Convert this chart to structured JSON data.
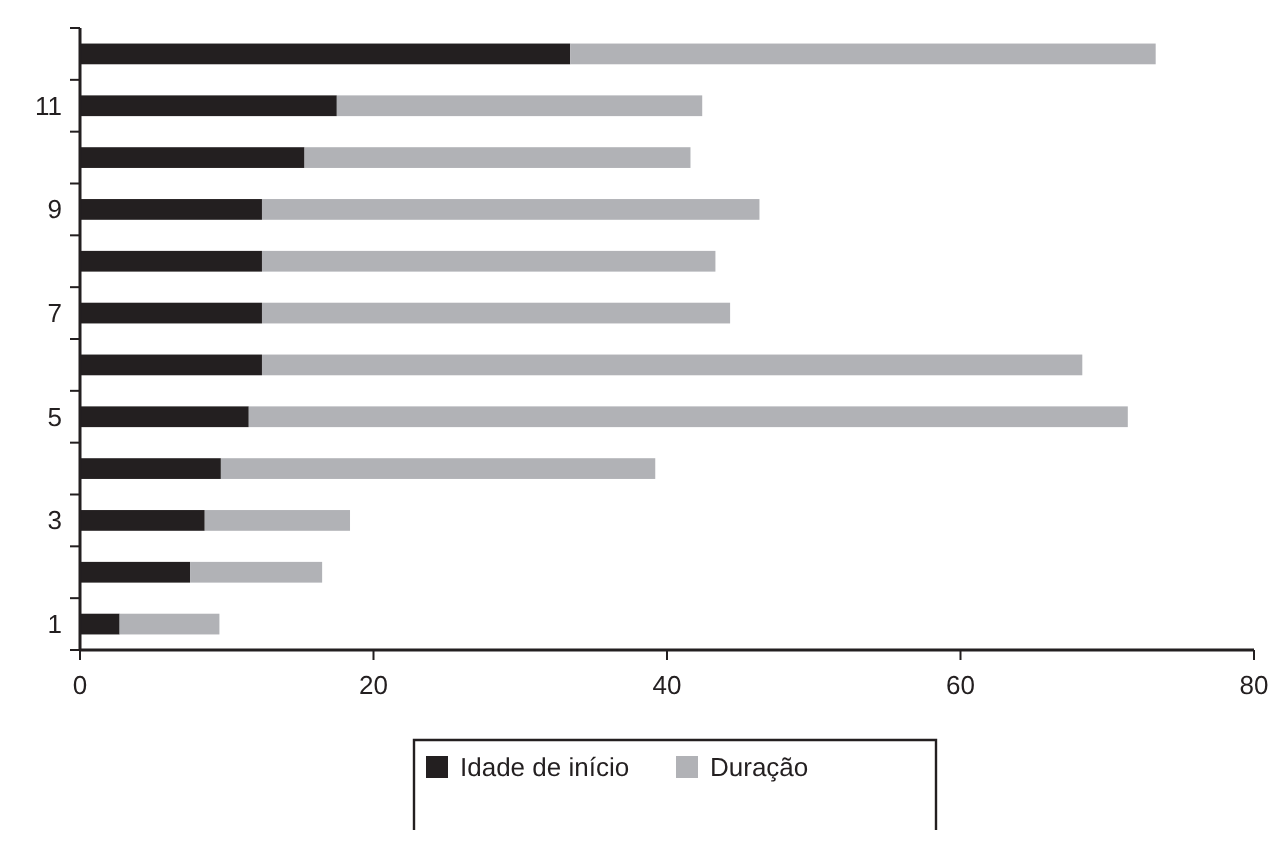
{
  "chart_data": {
    "type": "bar",
    "orientation": "horizontal",
    "stacked": true,
    "categories": [
      null,
      "11",
      null,
      "9",
      null,
      "7",
      null,
      "5",
      null,
      "3",
      null,
      "1"
    ],
    "series": [
      {
        "name": "Idade de início",
        "color": "#231f20",
        "values": [
          33.4,
          17.5,
          15.3,
          12.4,
          12.4,
          12.4,
          12.4,
          11.5,
          9.6,
          8.5,
          7.5,
          2.7
        ]
      },
      {
        "name": "Duração",
        "color": "#b1b2b6",
        "values": [
          39.9,
          24.9,
          26.3,
          33.9,
          30.9,
          31.9,
          55.9,
          59.9,
          29.6,
          9.9,
          9.0,
          6.8
        ]
      }
    ],
    "xlim": [
      0,
      80
    ],
    "xticks": [
      0,
      20,
      40,
      60,
      80
    ],
    "legend": "bottom",
    "grid": false
  }
}
